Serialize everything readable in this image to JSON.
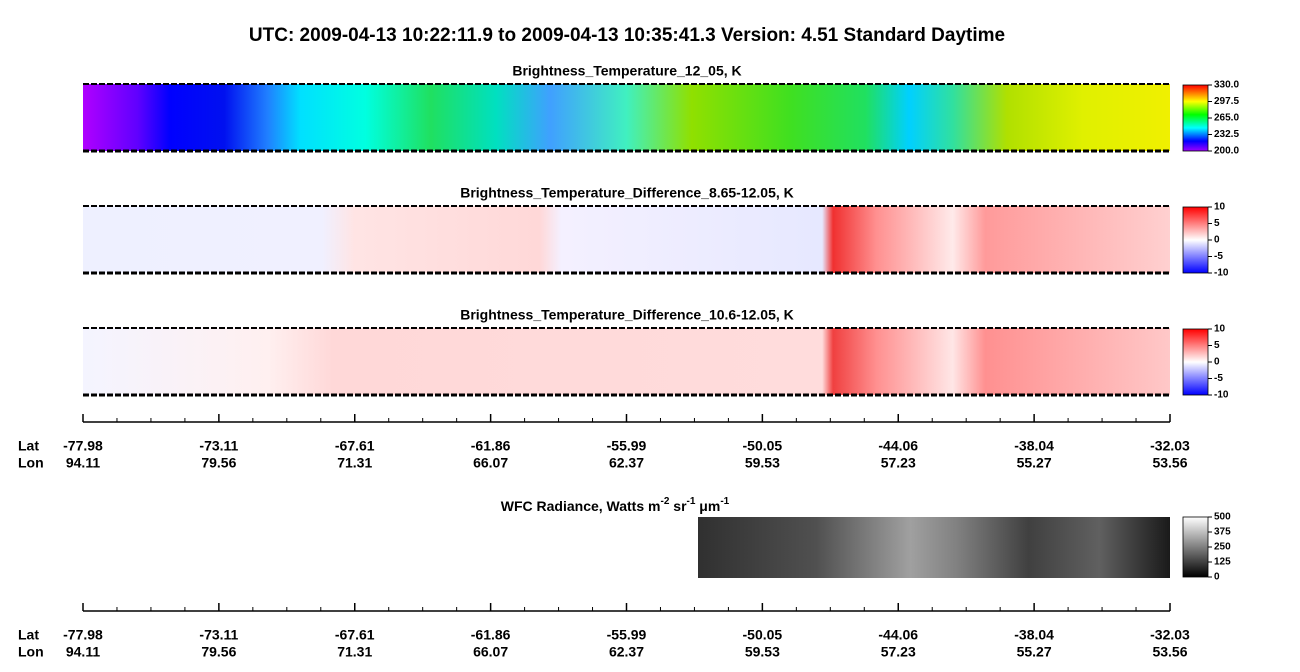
{
  "title": "UTC:  2009-04-13   10:22:11.9  to  2009-04-13   10:35:41.3    Version: 4.51  Standard Daytime",
  "panels": [
    {
      "title": "Brightness_Temperature_12_05, K",
      "colorbar_ticks": [
        "330.0",
        "297.5",
        "265.0",
        "232.5",
        "200.0"
      ]
    },
    {
      "title": "Brightness_Temperature_Difference_8.65-12.05, K",
      "colorbar_ticks": [
        "10",
        "5",
        "0",
        "-5",
        "-10"
      ]
    },
    {
      "title": "Brightness_Temperature_Difference_10.6-12.05, K",
      "colorbar_ticks": [
        "10",
        "5",
        "0",
        "-5",
        "-10"
      ]
    }
  ],
  "wfc": {
    "title_parts": [
      "WFC Radiance, Watts m",
      "-2",
      " sr",
      "-1",
      " μm",
      "-1"
    ],
    "colorbar_ticks": [
      "500",
      "375",
      "250",
      "125",
      "0"
    ]
  },
  "axes": [
    {
      "lat_label": "Lat",
      "lon_label": "Lon",
      "lat": [
        "-77.98",
        "-73.11",
        "-67.61",
        "-61.86",
        "-55.99",
        "-50.05",
        "-44.06",
        "-38.04",
        "-32.03"
      ],
      "lon": [
        "94.11",
        "79.56",
        "71.31",
        "66.07",
        "62.37",
        "59.53",
        "57.23",
        "55.27",
        "53.56"
      ]
    },
    {
      "lat_label": "Lat",
      "lon_label": "Lon",
      "lat": [
        "-77.98",
        "-73.11",
        "-67.61",
        "-61.86",
        "-55.99",
        "-50.05",
        "-44.06",
        "-38.04",
        "-32.03"
      ],
      "lon": [
        "94.11",
        "79.56",
        "71.31",
        "66.07",
        "62.37",
        "59.53",
        "57.23",
        "55.27",
        "53.56"
      ]
    }
  ]
}
